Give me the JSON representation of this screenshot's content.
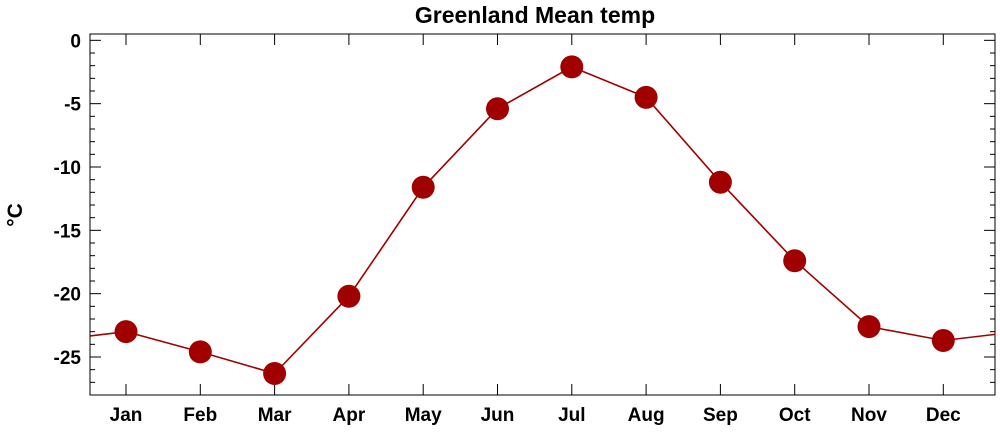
{
  "chart_data": {
    "type": "line",
    "title": "Greenland Mean temp",
    "xlabel": "",
    "ylabel": "°C",
    "categories": [
      "Jan",
      "Feb",
      "Mar",
      "Apr",
      "May",
      "Jun",
      "Jul",
      "Aug",
      "Sep",
      "Oct",
      "Nov",
      "Dec"
    ],
    "series": [
      {
        "values": [
          -23.0,
          -24.6,
          -26.3,
          -20.2,
          -11.6,
          -5.4,
          -2.1,
          -4.5,
          -11.2,
          -17.4,
          -22.6,
          -23.7
        ],
        "color": "#a00000",
        "marker": "filled-circle"
      }
    ],
    "ylim": [
      -28,
      0.5
    ],
    "yticks": [
      0,
      -5,
      -10,
      -15,
      -20,
      -25
    ],
    "ytick_labels": [
      "0",
      "-5",
      "-10",
      "-15",
      "-20",
      "-25"
    ],
    "grid": false,
    "legend": "none"
  }
}
